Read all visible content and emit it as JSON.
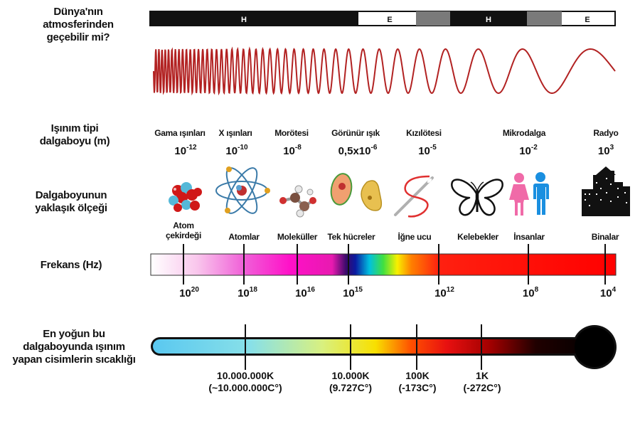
{
  "row_labels": {
    "atmosphere": [
      "Dünya'nın",
      "atmosferinden",
      "geçebilir mi?"
    ],
    "type": [
      "Işınım tipi",
      "dalgaboyu (m)"
    ],
    "scale": [
      "Dalgaboyunun",
      "yaklaşık ölçeği"
    ],
    "frequency": "Frekans (Hz)",
    "temperature": [
      "En yoğun bu",
      "dalgaboyunda ışınım",
      "yapan cisimlerin sıcaklığı"
    ]
  },
  "atmosphere_bar": [
    {
      "label": "H"
    },
    {
      "label": "E"
    },
    {
      "label": "H"
    },
    {
      "label": "E"
    }
  ],
  "radiation_types": [
    {
      "name": "Gama ışınları",
      "base": "10",
      "exp": "-12"
    },
    {
      "name": "X ışınları",
      "base": "10",
      "exp": "-10"
    },
    {
      "name": "Morötesi",
      "base": "10",
      "exp": "-8"
    },
    {
      "name": "Görünür ışık",
      "base": "0,5x10",
      "exp": "-6"
    },
    {
      "name": "Kızılötesi",
      "base": "10",
      "exp": "-5"
    },
    {
      "name": "Mikrodalga",
      "base": "10",
      "exp": "-2"
    },
    {
      "name": "Radyo",
      "base": "10",
      "exp": "3"
    }
  ],
  "scale_objects": [
    {
      "name": "Atom çekirdeği",
      "lines": [
        "Atom",
        "çekirdeği"
      ]
    },
    {
      "name": "Atomlar",
      "lines": [
        "Atomlar"
      ]
    },
    {
      "name": "Moleküller",
      "lines": [
        "Moleküller"
      ]
    },
    {
      "name": "Tek hücreler",
      "lines": [
        "Tek hücreler"
      ]
    },
    {
      "name": "İğne ucu",
      "lines": [
        "İğne ucu"
      ]
    },
    {
      "name": "Kelebekler",
      "lines": [
        "Kelebekler"
      ]
    },
    {
      "name": "İnsanlar",
      "lines": [
        "İnsanlar"
      ]
    },
    {
      "name": "Binalar",
      "lines": [
        "Binalar"
      ]
    }
  ],
  "frequencies": [
    {
      "base": "10",
      "exp": "20"
    },
    {
      "base": "10",
      "exp": "18"
    },
    {
      "base": "10",
      "exp": "16"
    },
    {
      "base": "10",
      "exp": "15"
    },
    {
      "base": "10",
      "exp": "12"
    },
    {
      "base": "10",
      "exp": "8"
    },
    {
      "base": "10",
      "exp": "4"
    }
  ],
  "temperatures": [
    {
      "kelvin": "10.000.000K",
      "celsius": "(~10.000.000C°)"
    },
    {
      "kelvin": "10.000K",
      "celsius": "(9.727C°)"
    },
    {
      "kelvin": "100K",
      "celsius": "(-173C°)"
    },
    {
      "kelvin": "1K",
      "celsius": "(-272C°)"
    }
  ],
  "colors": {
    "wave": "#b22222",
    "bar_black": "#111111",
    "bar_gray": "#7a7a7a",
    "person_pink": "#f06aa8",
    "person_blue": "#1a8fe0"
  }
}
